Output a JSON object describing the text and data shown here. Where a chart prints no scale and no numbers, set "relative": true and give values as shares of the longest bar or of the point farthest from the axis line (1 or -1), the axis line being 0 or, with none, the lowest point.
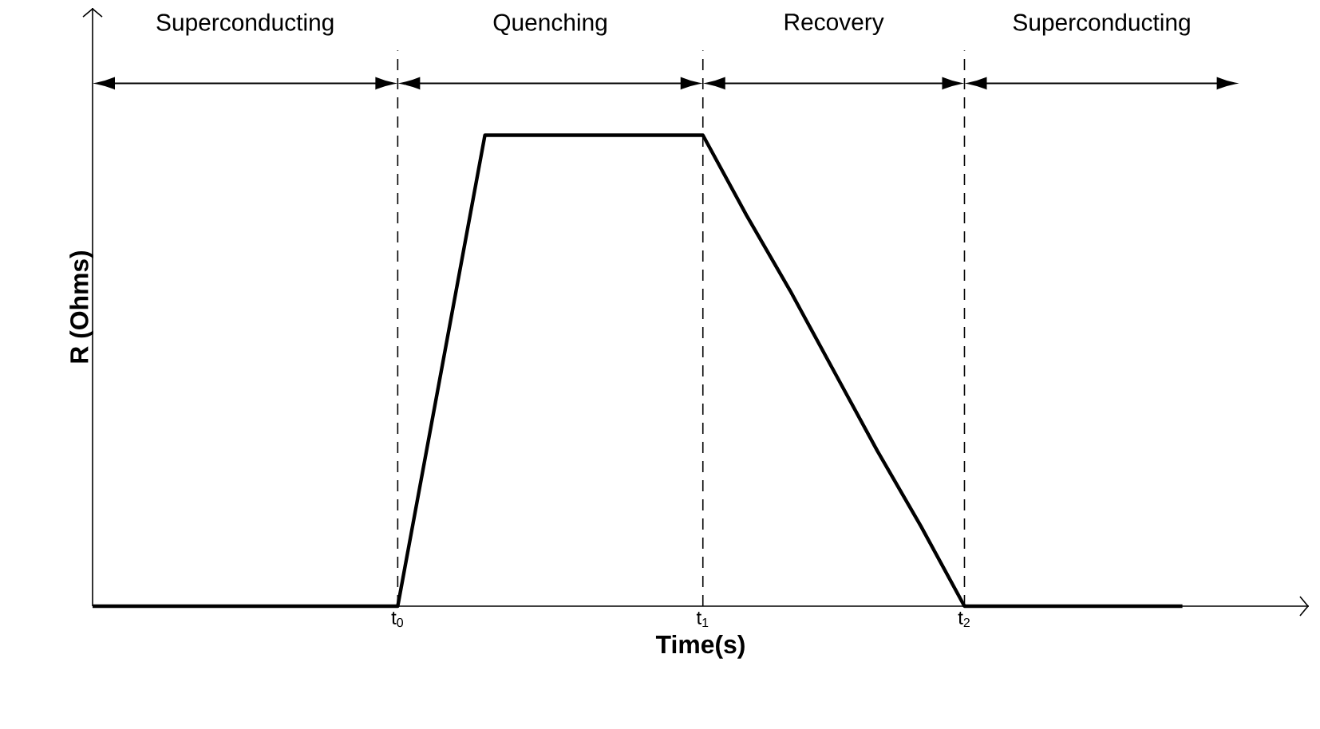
{
  "chart_data": {
    "type": "line",
    "relative": true,
    "xlabel": "Time(s)",
    "ylabel": "R (Ohms)",
    "categories": [
      null,
      null,
      null,
      null,
      null,
      null,
      null,
      "t$_{0}$",
      null,
      null,
      null,
      null,
      null,
      null,
      "t$_{1}$",
      null,
      null,
      null,
      null,
      null,
      "t$_{2}$",
      null,
      null,
      null,
      null,
      null
    ],
    "values": [
      0,
      0,
      0,
      0,
      0,
      0,
      0,
      0,
      0.5,
      1,
      1,
      1,
      1,
      1,
      1,
      0.83,
      0.67,
      0.5,
      0.33,
      0.17,
      0,
      0,
      0,
      0,
      0,
      0
    ],
    "color": "#000000",
    "line_style": "solid",
    "ref_lines": [
      {
        "axis": "x",
        "value": "t$_{0}$",
        "line_style": "dashed",
        "color": "#000000"
      },
      {
        "axis": "x",
        "value": "t$_{1}$",
        "line_style": "dashed",
        "color": "#000000"
      },
      {
        "axis": "x",
        "value": "t$_{2}$",
        "line_style": "dashed",
        "color": "#000000"
      }
    ],
    "annotations": [
      "Superconducting",
      "Quenching",
      "Recovery",
      "Superconducting"
    ]
  }
}
